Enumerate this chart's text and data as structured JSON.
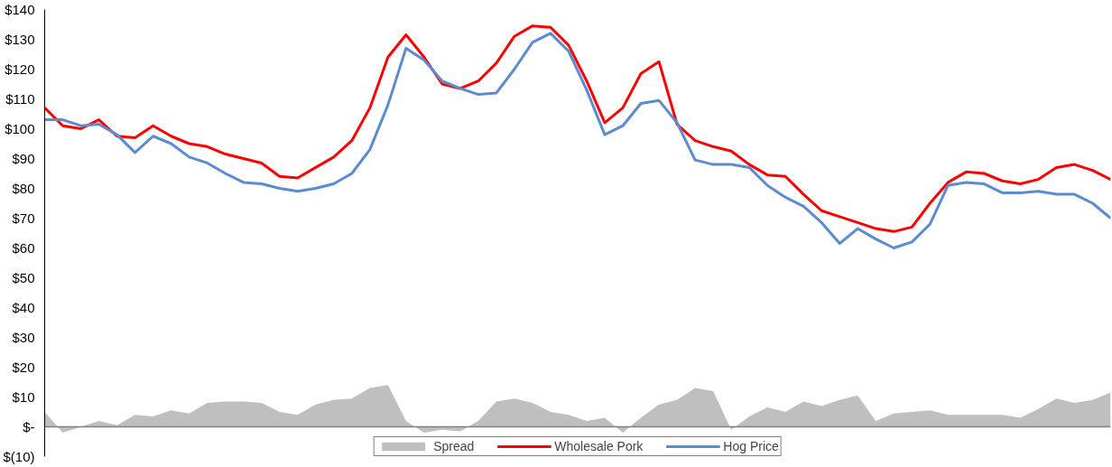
{
  "chart_data": {
    "type": "line",
    "ylim": [
      -10,
      140
    ],
    "categories": [
      null,
      null,
      null,
      null,
      null,
      null,
      null,
      null,
      null,
      null,
      null,
      null,
      null,
      null,
      null,
      null,
      null,
      null,
      null,
      null,
      null,
      null,
      null,
      null,
      null,
      null,
      null,
      null,
      null,
      null,
      null,
      null,
      null,
      null,
      null,
      null,
      null,
      null,
      null,
      null,
      null,
      null,
      null,
      null,
      null,
      null,
      null,
      null,
      null,
      null,
      null,
      null,
      null,
      null,
      null,
      null,
      null,
      null,
      null,
      null
    ],
    "yticks": [
      {
        "value": -10,
        "label": "$(10)"
      },
      {
        "value": 0,
        "label": "$-"
      },
      {
        "value": 10,
        "label": "$10"
      },
      {
        "value": 20,
        "label": "$20"
      },
      {
        "value": 30,
        "label": "$30"
      },
      {
        "value": 40,
        "label": "$40"
      },
      {
        "value": 50,
        "label": "$50"
      },
      {
        "value": 60,
        "label": "$60"
      },
      {
        "value": 70,
        "label": "$70"
      },
      {
        "value": 80,
        "label": "$80"
      },
      {
        "value": 90,
        "label": "$90"
      },
      {
        "value": 100,
        "label": "$100"
      },
      {
        "value": 110,
        "label": "$110"
      },
      {
        "value": 120,
        "label": "$120"
      },
      {
        "value": 130,
        "label": "$130"
      },
      {
        "value": 140,
        "label": "$140"
      }
    ],
    "tick_labels": "y",
    "grid": false,
    "legend": "bottom",
    "line_style": "solid",
    "ref_lines": [
      {
        "axis": "y",
        "value": 0,
        "label": null,
        "color": "#808080"
      }
    ],
    "series": [
      {
        "name": "Spread",
        "type": "area",
        "color": "#bfbfbf",
        "values": [
          5,
          -2,
          0,
          2,
          0.5,
          4,
          3.5,
          5.5,
          4.5,
          8,
          8.5,
          8.5,
          8,
          5,
          4,
          7.5,
          9,
          9.5,
          13,
          14,
          2,
          -2,
          -1,
          -1.5,
          2,
          8.5,
          9.5,
          8,
          5,
          4,
          2,
          3,
          -2,
          3,
          7.5,
          9,
          13,
          12,
          -1,
          3.5,
          6.5,
          5,
          8.5,
          7,
          9,
          10.5,
          2,
          4.5,
          5,
          5.5,
          4,
          4,
          4,
          4,
          3,
          6,
          9.5,
          8,
          9,
          11.5
        ]
      },
      {
        "name": "Wholesale Pork",
        "color": "#ff0000",
        "values": [
          107,
          101,
          100,
          103,
          97.5,
          97,
          101,
          97.5,
          95,
          94,
          91.5,
          90,
          88.5,
          84,
          83.5,
          87,
          90.5,
          96,
          107,
          124,
          131.5,
          124,
          115,
          113.5,
          116,
          122,
          131,
          134.5,
          134,
          128,
          116,
          102,
          107,
          118.5,
          122.5,
          101.5,
          96,
          94,
          92.5,
          88,
          84.5,
          84,
          78,
          72.5,
          70.5,
          68.5,
          66.5,
          65.5,
          67,
          75,
          82,
          85.5,
          85,
          82.5,
          81.5,
          83,
          87,
          88,
          86,
          83
        ]
      },
      {
        "name": "Hog Price",
        "color": "#5b8bd0",
        "values": [
          103,
          103,
          101,
          101.5,
          98,
          92,
          97.5,
          95,
          90.5,
          88.5,
          85,
          82,
          81.5,
          80,
          79,
          80,
          81.5,
          85,
          93,
          108,
          127,
          123,
          116,
          113.5,
          111.5,
          112,
          120,
          129,
          132,
          126,
          113,
          98,
          101,
          108.5,
          109.5,
          102,
          89.5,
          88,
          88,
          87,
          81,
          77,
          74,
          68.5,
          61.5,
          66.5,
          63,
          60,
          62,
          68,
          81,
          82,
          81.5,
          78.5,
          78.5,
          79,
          78,
          78,
          75,
          70
        ]
      }
    ]
  }
}
